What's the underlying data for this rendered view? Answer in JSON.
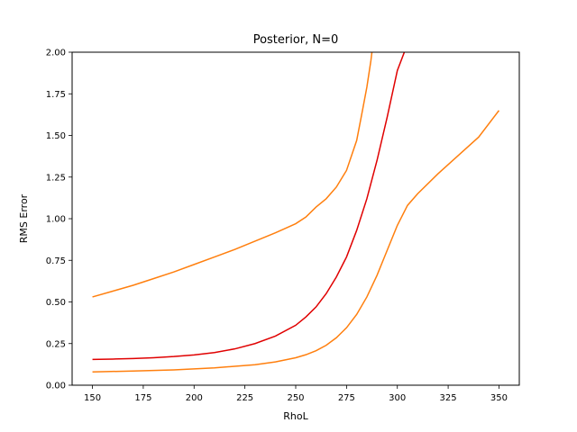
{
  "chart_data": {
    "type": "line",
    "title": "Posterior, N=0",
    "xlabel": "RhoL",
    "ylabel": "RMS Error",
    "xlim": [
      140,
      360
    ],
    "ylim": [
      0,
      2.0
    ],
    "xticks": [
      150,
      175,
      200,
      225,
      250,
      275,
      300,
      325,
      350
    ],
    "yticks": [
      0.0,
      0.25,
      0.5,
      0.75,
      1.0,
      1.25,
      1.5,
      1.75,
      2.0
    ],
    "xtick_labels": [
      "150",
      "175",
      "200",
      "225",
      "250",
      "275",
      "300",
      "325",
      "350"
    ],
    "ytick_labels": [
      "0.00",
      "0.25",
      "0.50",
      "0.75",
      "1.00",
      "1.25",
      "1.50",
      "1.75",
      "2.00"
    ],
    "grid": false,
    "series": [
      {
        "color": "#ff7f0e",
        "x": [
          150,
          160,
          170,
          180,
          190,
          200,
          210,
          220,
          230,
          240,
          250,
          255,
          260,
          265,
          270,
          275,
          280,
          283,
          285,
          287,
          288,
          290
        ],
        "y": [
          0.53,
          0.565,
          0.6,
          0.64,
          0.68,
          0.725,
          0.77,
          0.815,
          0.865,
          0.915,
          0.97,
          1.01,
          1.07,
          1.12,
          1.19,
          1.29,
          1.47,
          1.66,
          1.79,
          1.95,
          2.05,
          2.25
        ]
      },
      {
        "color": "#e00000",
        "x": [
          150,
          160,
          170,
          180,
          190,
          200,
          210,
          220,
          230,
          240,
          250,
          255,
          260,
          265,
          270,
          275,
          280,
          285,
          290,
          295,
          300,
          305,
          307
        ],
        "y": [
          0.155,
          0.157,
          0.16,
          0.165,
          0.172,
          0.182,
          0.196,
          0.218,
          0.25,
          0.295,
          0.36,
          0.41,
          0.47,
          0.55,
          0.65,
          0.77,
          0.93,
          1.12,
          1.35,
          1.61,
          1.89,
          2.05,
          2.15
        ]
      },
      {
        "color": "#ff7f0e",
        "x": [
          150,
          170,
          190,
          210,
          230,
          240,
          250,
          255,
          260,
          265,
          270,
          275,
          280,
          285,
          290,
          295,
          300,
          305,
          310,
          320,
          330,
          340,
          350
        ],
        "y": [
          0.08,
          0.085,
          0.092,
          0.104,
          0.123,
          0.14,
          0.165,
          0.183,
          0.207,
          0.24,
          0.285,
          0.345,
          0.425,
          0.53,
          0.66,
          0.81,
          0.96,
          1.08,
          1.15,
          1.27,
          1.38,
          1.49,
          1.65
        ]
      }
    ]
  }
}
